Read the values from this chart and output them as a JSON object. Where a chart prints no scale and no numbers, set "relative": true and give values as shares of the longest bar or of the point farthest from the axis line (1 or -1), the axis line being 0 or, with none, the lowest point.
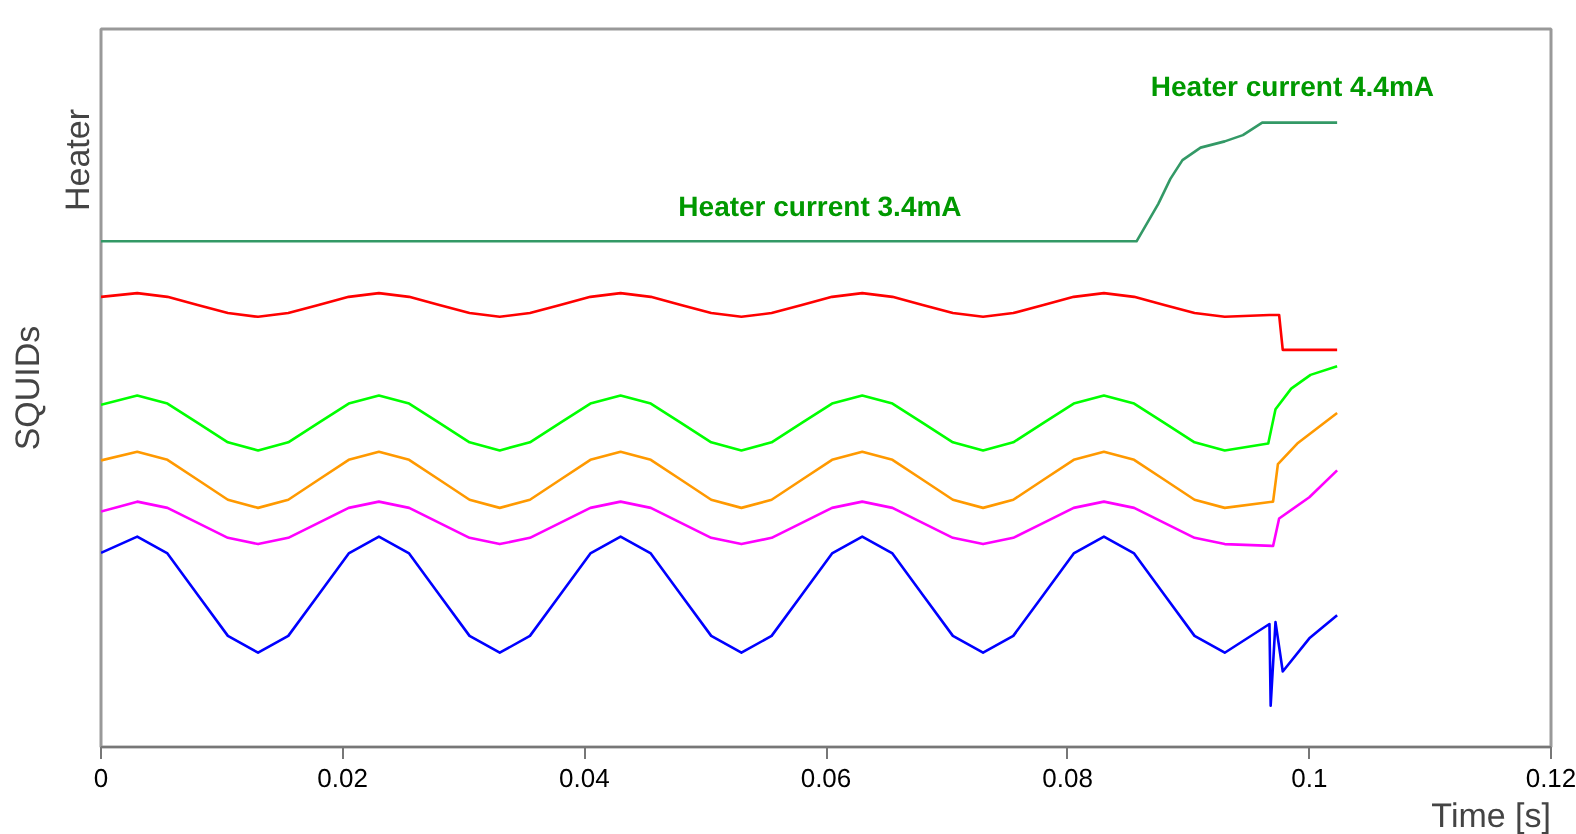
{
  "chart_data": {
    "type": "line",
    "relative": true,
    "xlim": [
      0,
      0.12
    ],
    "xticks": [
      0,
      0.02,
      0.04,
      0.06,
      0.08,
      0.1,
      0.12
    ],
    "xlabel": "Time [s]",
    "ylabel": "Heater",
    "grid": false,
    "annotations": [
      "SQUIDs",
      "Heater current 3.4mA",
      "Heater current 4.4mA"
    ],
    "series": [
      {
        "color": "#339966",
        "x": [
          0,
          0.0857,
          0.0875,
          0.0885,
          0.0895,
          0.091,
          0.093,
          0.0945,
          0.0961,
          0.1023
        ],
        "values": [
          0.81,
          0.81,
          0.87,
          0.91,
          0.94,
          0.96,
          0.97,
          0.98,
          1.0,
          1.0
        ]
      },
      {
        "color": "#ff0000",
        "x": [
          0,
          0.003,
          0.0055,
          0.008,
          0.0105,
          0.013,
          0.0155,
          0.018,
          0.0205,
          0.023,
          0.0255,
          0.028,
          0.0305,
          0.033,
          0.0355,
          0.038,
          0.0405,
          0.043,
          0.0455,
          0.048,
          0.0505,
          0.053,
          0.0555,
          0.058,
          0.0605,
          0.063,
          0.0655,
          0.068,
          0.0705,
          0.073,
          0.0755,
          0.078,
          0.0805,
          0.083,
          0.0855,
          0.088,
          0.0905,
          0.093,
          0.0967,
          0.0975,
          0.0978,
          0.1023
        ],
        "values": [
          0.721,
          0.727,
          0.721,
          0.708,
          0.695,
          0.689,
          0.695,
          0.708,
          0.721,
          0.727,
          0.721,
          0.708,
          0.695,
          0.689,
          0.695,
          0.708,
          0.721,
          0.727,
          0.721,
          0.708,
          0.695,
          0.689,
          0.695,
          0.708,
          0.721,
          0.727,
          0.721,
          0.708,
          0.695,
          0.689,
          0.695,
          0.708,
          0.721,
          0.727,
          0.721,
          0.708,
          0.695,
          0.689,
          0.692,
          0.692,
          0.636,
          0.636
        ]
      },
      {
        "color": "#00ff00",
        "x": [
          0,
          0.003,
          0.0055,
          0.008,
          0.0105,
          0.013,
          0.0155,
          0.018,
          0.0205,
          0.023,
          0.0255,
          0.028,
          0.0305,
          0.033,
          0.0355,
          0.038,
          0.0405,
          0.043,
          0.0455,
          0.048,
          0.0505,
          0.053,
          0.0555,
          0.058,
          0.0605,
          0.063,
          0.0655,
          0.068,
          0.0705,
          0.073,
          0.0755,
          0.078,
          0.0805,
          0.083,
          0.0855,
          0.088,
          0.0905,
          0.093,
          0.0966,
          0.0972,
          0.0985,
          0.1001,
          0.1023
        ],
        "values": [
          0.548,
          0.563,
          0.55,
          0.519,
          0.488,
          0.475,
          0.488,
          0.519,
          0.55,
          0.563,
          0.55,
          0.519,
          0.488,
          0.475,
          0.488,
          0.519,
          0.55,
          0.563,
          0.55,
          0.519,
          0.488,
          0.475,
          0.488,
          0.519,
          0.55,
          0.563,
          0.55,
          0.519,
          0.488,
          0.475,
          0.488,
          0.519,
          0.55,
          0.563,
          0.55,
          0.519,
          0.488,
          0.475,
          0.486,
          0.541,
          0.574,
          0.596,
          0.61
        ]
      },
      {
        "color": "#ff9900",
        "x": [
          0,
          0.003,
          0.0055,
          0.008,
          0.0105,
          0.013,
          0.0155,
          0.018,
          0.0205,
          0.023,
          0.0255,
          0.028,
          0.0305,
          0.033,
          0.0355,
          0.038,
          0.0405,
          0.043,
          0.0455,
          0.048,
          0.0505,
          0.053,
          0.0555,
          0.058,
          0.0605,
          0.063,
          0.0655,
          0.068,
          0.0705,
          0.073,
          0.0755,
          0.078,
          0.0805,
          0.083,
          0.0855,
          0.088,
          0.0905,
          0.093,
          0.097,
          0.0974,
          0.099,
          0.1023
        ],
        "values": [
          0.459,
          0.473,
          0.46,
          0.428,
          0.396,
          0.383,
          0.396,
          0.428,
          0.46,
          0.473,
          0.46,
          0.428,
          0.396,
          0.383,
          0.396,
          0.428,
          0.46,
          0.473,
          0.46,
          0.428,
          0.396,
          0.383,
          0.396,
          0.428,
          0.46,
          0.473,
          0.46,
          0.428,
          0.396,
          0.383,
          0.396,
          0.428,
          0.46,
          0.473,
          0.46,
          0.428,
          0.396,
          0.383,
          0.393,
          0.453,
          0.486,
          0.535
        ]
      },
      {
        "color": "#ff00ff",
        "x": [
          0,
          0.003,
          0.0055,
          0.008,
          0.0105,
          0.013,
          0.0155,
          0.018,
          0.0205,
          0.023,
          0.0255,
          0.028,
          0.0305,
          0.033,
          0.0355,
          0.038,
          0.0405,
          0.043,
          0.0455,
          0.048,
          0.0505,
          0.053,
          0.0555,
          0.058,
          0.0605,
          0.063,
          0.0655,
          0.068,
          0.0705,
          0.073,
          0.0755,
          0.078,
          0.0805,
          0.083,
          0.0855,
          0.088,
          0.0905,
          0.093,
          0.097,
          0.0975,
          0.1,
          0.1023
        ],
        "values": [
          0.377,
          0.393,
          0.383,
          0.359,
          0.335,
          0.325,
          0.335,
          0.359,
          0.383,
          0.393,
          0.383,
          0.359,
          0.335,
          0.325,
          0.335,
          0.359,
          0.383,
          0.393,
          0.383,
          0.359,
          0.335,
          0.325,
          0.335,
          0.359,
          0.383,
          0.393,
          0.383,
          0.359,
          0.335,
          0.325,
          0.335,
          0.359,
          0.383,
          0.393,
          0.383,
          0.359,
          0.335,
          0.325,
          0.322,
          0.366,
          0.4,
          0.443
        ]
      },
      {
        "color": "#0000ff",
        "x": [
          0,
          0.003,
          0.0055,
          0.008,
          0.0105,
          0.013,
          0.0155,
          0.018,
          0.0205,
          0.023,
          0.0255,
          0.028,
          0.0305,
          0.033,
          0.0355,
          0.038,
          0.0405,
          0.043,
          0.0455,
          0.048,
          0.0505,
          0.053,
          0.0555,
          0.058,
          0.0605,
          0.063,
          0.0655,
          0.068,
          0.0705,
          0.073,
          0.0755,
          0.078,
          0.0805,
          0.083,
          0.0855,
          0.088,
          0.0905,
          0.093,
          0.0967,
          0.0968,
          0.0972,
          0.0978,
          0.1,
          0.1023
        ],
        "values": [
          0.311,
          0.337,
          0.31,
          0.244,
          0.178,
          0.151,
          0.178,
          0.244,
          0.31,
          0.337,
          0.31,
          0.244,
          0.178,
          0.151,
          0.178,
          0.244,
          0.31,
          0.337,
          0.31,
          0.244,
          0.178,
          0.151,
          0.178,
          0.244,
          0.31,
          0.337,
          0.31,
          0.244,
          0.178,
          0.151,
          0.178,
          0.244,
          0.31,
          0.337,
          0.31,
          0.244,
          0.178,
          0.151,
          0.197,
          0.066,
          0.2,
          0.121,
          0.174,
          0.211
        ]
      }
    ]
  }
}
